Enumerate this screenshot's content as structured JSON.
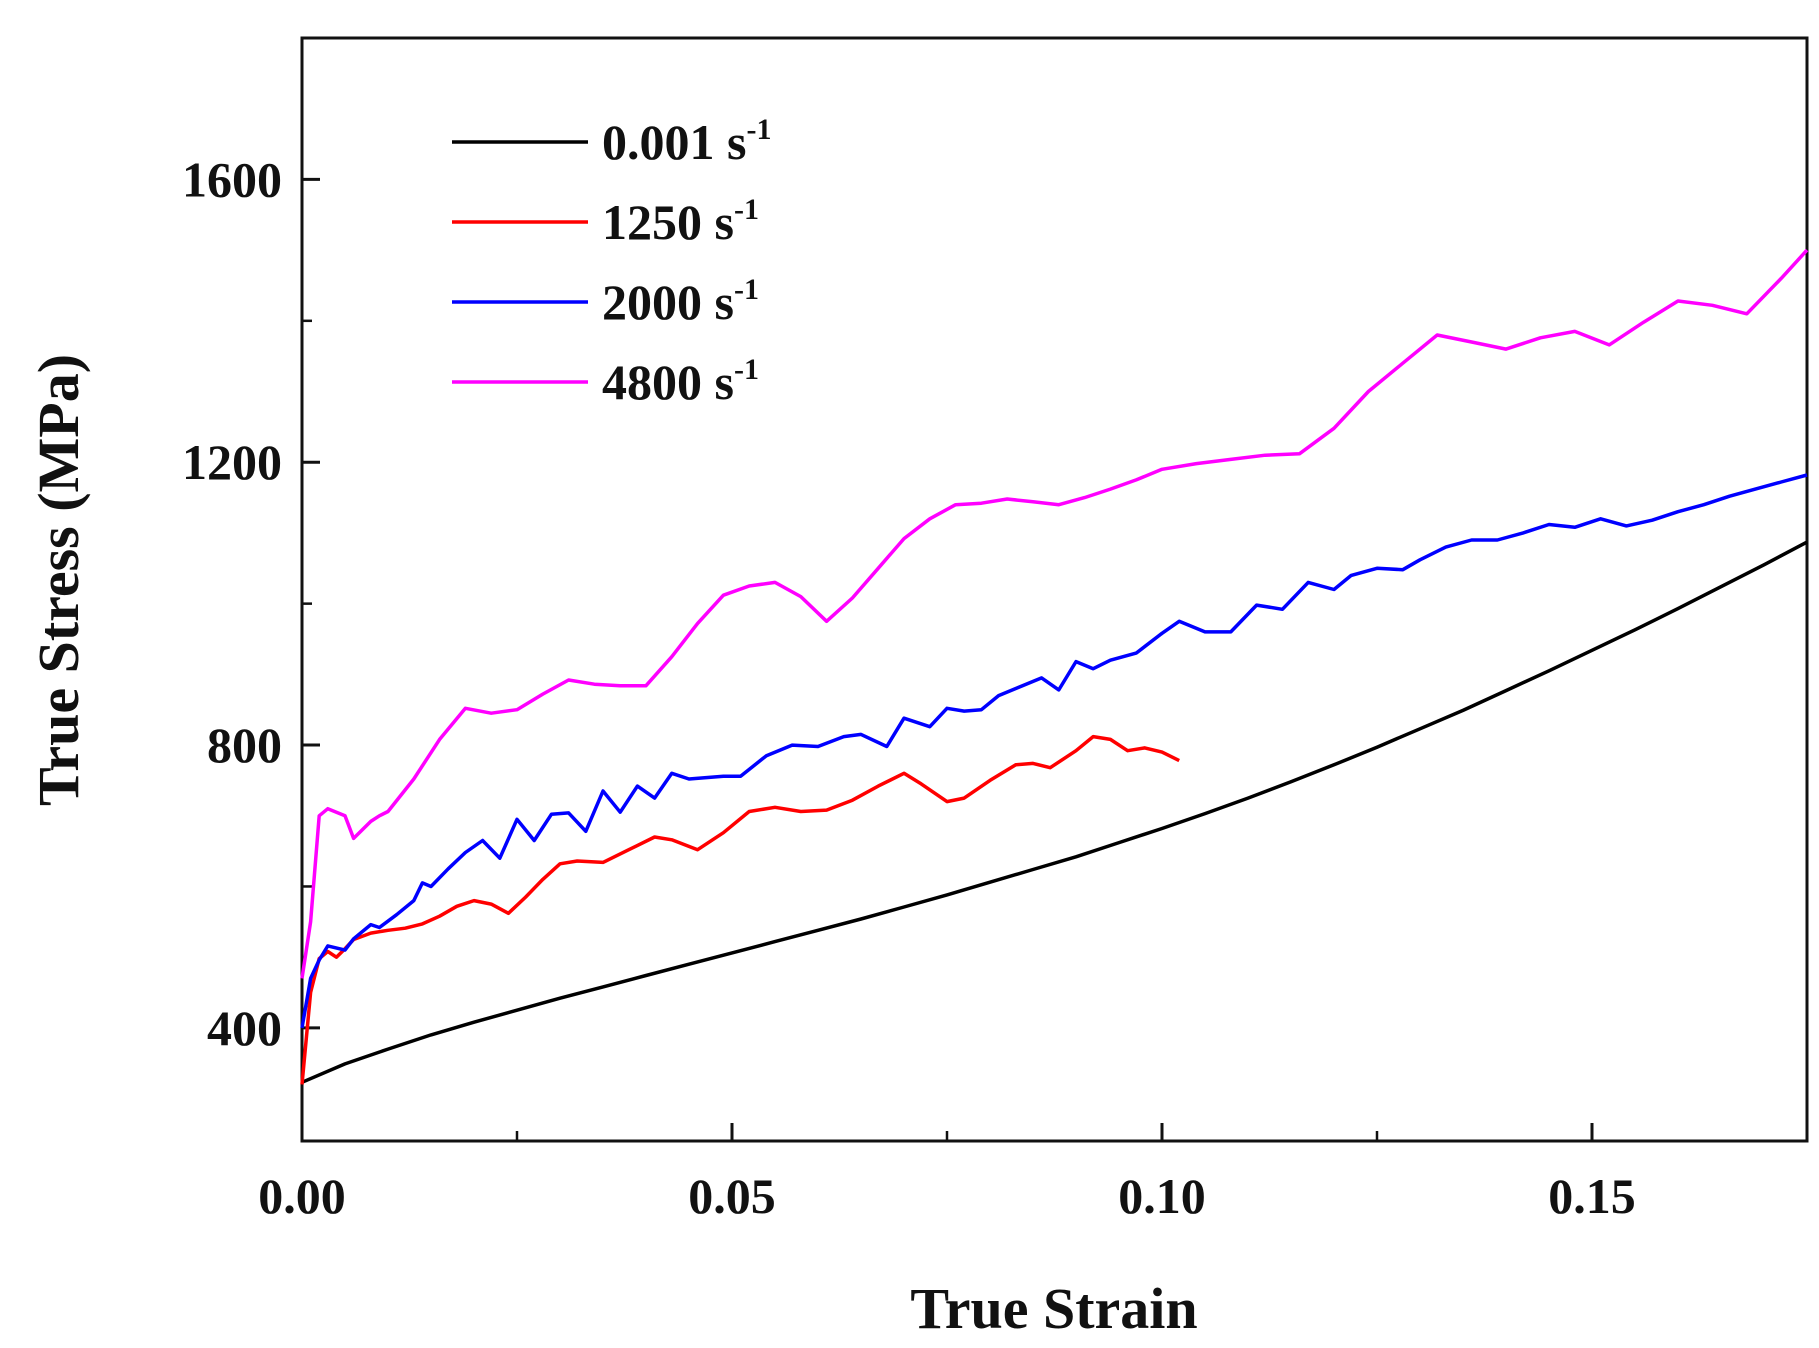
{
  "chart_data": {
    "type": "line",
    "title": "",
    "xlabel": "True Strain",
    "ylabel": "True Stress (MPa)",
    "xlim": [
      0,
      0.175
    ],
    "ylim": [
      240,
      1800
    ],
    "xticks": [
      0.0,
      0.05,
      0.1,
      0.15
    ],
    "xtick_labels": [
      "0.00",
      "0.05",
      "0.10",
      "0.15"
    ],
    "xminor": [
      0.025,
      0.075,
      0.125
    ],
    "yticks": [
      400,
      800,
      1200,
      1600
    ],
    "ytick_labels": [
      "400",
      "800",
      "1200",
      "1600"
    ],
    "grid": false,
    "legend_position": "top-left",
    "series": [
      {
        "name": "0.001 s",
        "unit_base": "0.001 s",
        "unit_sup": "-1",
        "color": "#000000",
        "x": [
          0,
          0.005,
          0.01,
          0.015,
          0.02,
          0.025,
          0.03,
          0.035,
          0.04,
          0.045,
          0.05,
          0.055,
          0.06,
          0.065,
          0.07,
          0.075,
          0.08,
          0.085,
          0.09,
          0.095,
          0.1,
          0.105,
          0.11,
          0.115,
          0.12,
          0.125,
          0.13,
          0.135,
          0.14,
          0.145,
          0.15,
          0.155,
          0.16,
          0.165,
          0.17,
          0.175
        ],
        "y": [
          323,
          349,
          370,
          390,
          408,
          425,
          442,
          458,
          474,
          490,
          506,
          522,
          538,
          554,
          571,
          588,
          606,
          624,
          642,
          662,
          682,
          703,
          725,
          748,
          772,
          797,
          823,
          849,
          877,
          905,
          934,
          963,
          993,
          1024,
          1055,
          1087
        ]
      },
      {
        "name": "1250 s",
        "unit_base": "1250 s",
        "unit_sup": "-1",
        "color": "#ff0000",
        "x": [
          0,
          0.001,
          0.002,
          0.003,
          0.004,
          0.005,
          0.006,
          0.008,
          0.01,
          0.012,
          0.014,
          0.016,
          0.018,
          0.02,
          0.022,
          0.024,
          0.026,
          0.028,
          0.03,
          0.032,
          0.035,
          0.038,
          0.041,
          0.043,
          0.046,
          0.049,
          0.052,
          0.055,
          0.058,
          0.061,
          0.064,
          0.067,
          0.07,
          0.072,
          0.075,
          0.077,
          0.08,
          0.083,
          0.085,
          0.087,
          0.09,
          0.092,
          0.094,
          0.096,
          0.098,
          0.1,
          0.102
        ],
        "y": [
          320,
          450,
          498,
          508,
          500,
          512,
          525,
          534,
          538,
          541,
          547,
          558,
          572,
          580,
          575,
          562,
          585,
          610,
          632,
          636,
          634,
          652,
          670,
          666,
          652,
          676,
          706,
          712,
          706,
          708,
          722,
          742,
          760,
          745,
          720,
          725,
          750,
          772,
          774,
          768,
          792,
          812,
          808,
          792,
          796,
          790,
          778
        ]
      },
      {
        "name": "2000 s",
        "unit_base": "2000 s",
        "unit_sup": "-1",
        "color": "#0000ff",
        "x": [
          0,
          0.001,
          0.002,
          0.003,
          0.005,
          0.006,
          0.008,
          0.009,
          0.011,
          0.013,
          0.014,
          0.015,
          0.017,
          0.019,
          0.021,
          0.023,
          0.025,
          0.027,
          0.029,
          0.031,
          0.033,
          0.035,
          0.037,
          0.039,
          0.041,
          0.043,
          0.045,
          0.047,
          0.049,
          0.051,
          0.054,
          0.057,
          0.06,
          0.063,
          0.065,
          0.068,
          0.07,
          0.073,
          0.075,
          0.077,
          0.079,
          0.081,
          0.083,
          0.086,
          0.088,
          0.09,
          0.092,
          0.094,
          0.097,
          0.1,
          0.102,
          0.105,
          0.108,
          0.111,
          0.114,
          0.117,
          0.12,
          0.122,
          0.125,
          0.128,
          0.13,
          0.133,
          0.136,
          0.139,
          0.142,
          0.145,
          0.148,
          0.151,
          0.154,
          0.157,
          0.16,
          0.163,
          0.166,
          0.169,
          0.172,
          0.175
        ],
        "y": [
          400,
          470,
          496,
          516,
          510,
          526,
          546,
          542,
          560,
          580,
          605,
          600,
          625,
          648,
          665,
          640,
          695,
          665,
          702,
          704,
          678,
          735,
          705,
          742,
          725,
          760,
          752,
          754,
          756,
          756,
          785,
          800,
          798,
          812,
          815,
          798,
          838,
          826,
          852,
          848,
          850,
          870,
          880,
          895,
          878,
          918,
          908,
          920,
          930,
          958,
          975,
          960,
          960,
          998,
          992,
          1030,
          1020,
          1040,
          1050,
          1048,
          1062,
          1080,
          1090,
          1090,
          1100,
          1112,
          1108,
          1120,
          1110,
          1118,
          1130,
          1140,
          1152,
          1162,
          1172,
          1182
        ]
      },
      {
        "name": "4800 s",
        "unit_base": "4800 s",
        "unit_sup": "-1",
        "color": "#ff00ff",
        "x": [
          0,
          0.001,
          0.002,
          0.003,
          0.004,
          0.005,
          0.006,
          0.007,
          0.008,
          0.009,
          0.01,
          0.013,
          0.016,
          0.019,
          0.022,
          0.025,
          0.028,
          0.031,
          0.034,
          0.037,
          0.04,
          0.043,
          0.046,
          0.049,
          0.052,
          0.055,
          0.058,
          0.061,
          0.064,
          0.067,
          0.07,
          0.073,
          0.076,
          0.079,
          0.082,
          0.085,
          0.088,
          0.091,
          0.094,
          0.097,
          0.1,
          0.104,
          0.108,
          0.112,
          0.116,
          0.12,
          0.124,
          0.128,
          0.132,
          0.136,
          0.14,
          0.144,
          0.148,
          0.152,
          0.156,
          0.16,
          0.164,
          0.168,
          0.172,
          0.175
        ],
        "y": [
          470,
          550,
          700,
          710,
          705,
          700,
          668,
          680,
          692,
          700,
          706,
          752,
          808,
          852,
          845,
          850,
          872,
          892,
          886,
          884,
          884,
          925,
          972,
          1012,
          1025,
          1030,
          1010,
          975,
          1008,
          1050,
          1092,
          1120,
          1140,
          1142,
          1148,
          1144,
          1140,
          1150,
          1162,
          1175,
          1190,
          1198,
          1204,
          1210,
          1212,
          1248,
          1300,
          1340,
          1380,
          1370,
          1360,
          1376,
          1385,
          1366,
          1398,
          1428,
          1422,
          1410,
          1460,
          1500
        ]
      }
    ]
  }
}
